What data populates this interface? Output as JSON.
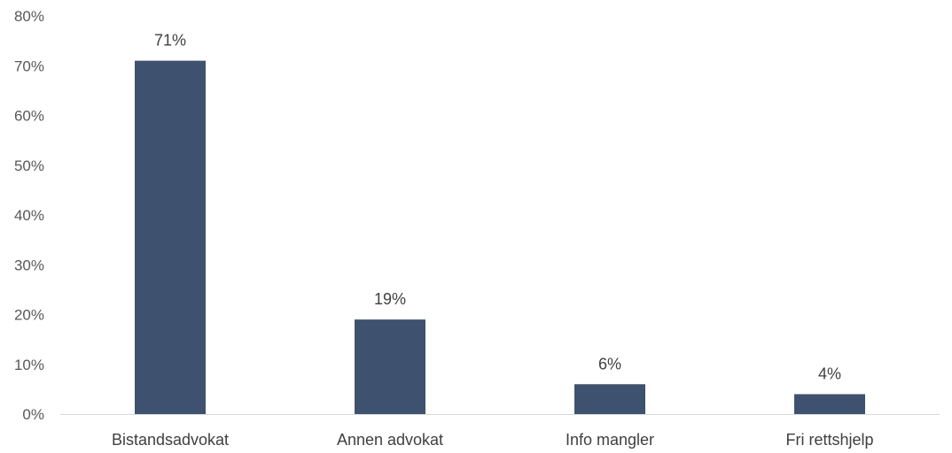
{
  "chart_data": {
    "type": "bar",
    "categories": [
      "Bistandsadvokat",
      "Annen advokat",
      "Info mangler",
      "Fri rettshjelp"
    ],
    "values": [
      71,
      19,
      6,
      4
    ],
    "data_labels": [
      "71%",
      "19%",
      "6%",
      "4%"
    ],
    "title": "",
    "xlabel": "",
    "ylabel": "",
    "ylim": [
      0,
      80
    ],
    "y_ticks": [
      "0%",
      "10%",
      "20%",
      "30%",
      "40%",
      "50%",
      "60%",
      "70%",
      "80%"
    ],
    "grid": false,
    "legend": "none",
    "bar_color": "#3e5270",
    "axis_color": "#d9d9d9"
  }
}
